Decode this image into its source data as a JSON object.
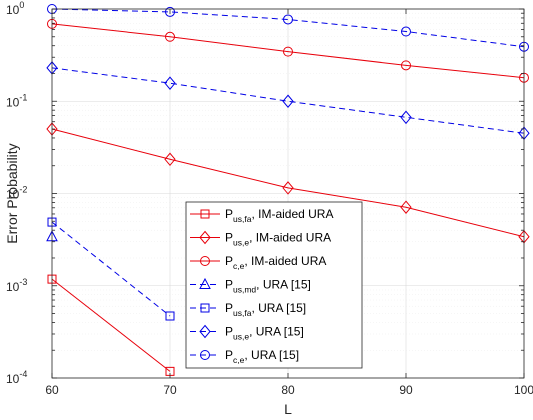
{
  "chart_data": {
    "type": "line",
    "xlabel": "L",
    "ylabel": "Error Probability",
    "xlim": [
      60,
      100
    ],
    "ylim": [
      0.0001,
      1
    ],
    "yscale": "log",
    "grid": true,
    "legend_position": "bottom-center",
    "x_ticks": [
      "60",
      "70",
      "80",
      "90",
      "100"
    ],
    "y_ticks": [
      {
        "base": "10",
        "exp": "-4"
      },
      {
        "base": "10",
        "exp": "-3"
      },
      {
        "base": "10",
        "exp": "-2"
      },
      {
        "base": "10",
        "exp": "-1"
      },
      {
        "base": "10",
        "exp": "0"
      }
    ],
    "series": [
      {
        "name": "P_us,fa, IM-aided URA",
        "label_main": "P",
        "label_sub": "us,fa",
        "label_rest": ", IM-aided URA",
        "color": "#e8000b",
        "dash": "solid",
        "marker": "square",
        "x": [
          60,
          70
        ],
        "y": [
          0.00118,
          0.000118
        ]
      },
      {
        "name": "P_us,e, IM-aided URA",
        "label_main": "P",
        "label_sub": "us,e",
        "label_rest": ", IM-aided URA",
        "color": "#e8000b",
        "dash": "solid",
        "marker": "diamond",
        "x": [
          60,
          70,
          80,
          90,
          100
        ],
        "y": [
          0.05,
          0.0235,
          0.0115,
          0.0071,
          0.0034
        ]
      },
      {
        "name": "P_c,e, IM-aided URA",
        "label_main": "P",
        "label_sub": "c,e",
        "label_rest": ", IM-aided URA",
        "color": "#e8000b",
        "dash": "solid",
        "marker": "circle",
        "x": [
          60,
          70,
          80,
          90,
          100
        ],
        "y": [
          0.69,
          0.5,
          0.345,
          0.245,
          0.18
        ]
      },
      {
        "name": "P_us,md, URA [15]",
        "label_main": "P",
        "label_sub": "us,md",
        "label_rest": ", URA [15]",
        "color": "#0000e6",
        "dash": "dashed",
        "marker": "triangle",
        "x": [
          60
        ],
        "y": [
          0.0034
        ]
      },
      {
        "name": "P_us,fa, URA [15]",
        "label_main": "P",
        "label_sub": "us,fa",
        "label_rest": ", URA [15]",
        "color": "#0000e6",
        "dash": "dashed",
        "marker": "square",
        "x": [
          60,
          70
        ],
        "y": [
          0.0049,
          0.00047
        ]
      },
      {
        "name": "P_us,e, URA [15]",
        "label_main": "P",
        "label_sub": "us,e",
        "label_rest": ", URA [15]",
        "color": "#0000e6",
        "dash": "dashed",
        "marker": "diamond",
        "x": [
          60,
          70,
          80,
          90,
          100
        ],
        "y": [
          0.23,
          0.157,
          0.1,
          0.067,
          0.045
        ]
      },
      {
        "name": "P_c,e, URA [15]",
        "label_main": "P",
        "label_sub": "c,e",
        "label_rest": ", URA [15]",
        "color": "#0000e6",
        "dash": "dashed",
        "marker": "circle",
        "x": [
          60,
          70,
          80,
          90,
          100
        ],
        "y": [
          1.0,
          0.93,
          0.77,
          0.57,
          0.39
        ]
      }
    ]
  }
}
